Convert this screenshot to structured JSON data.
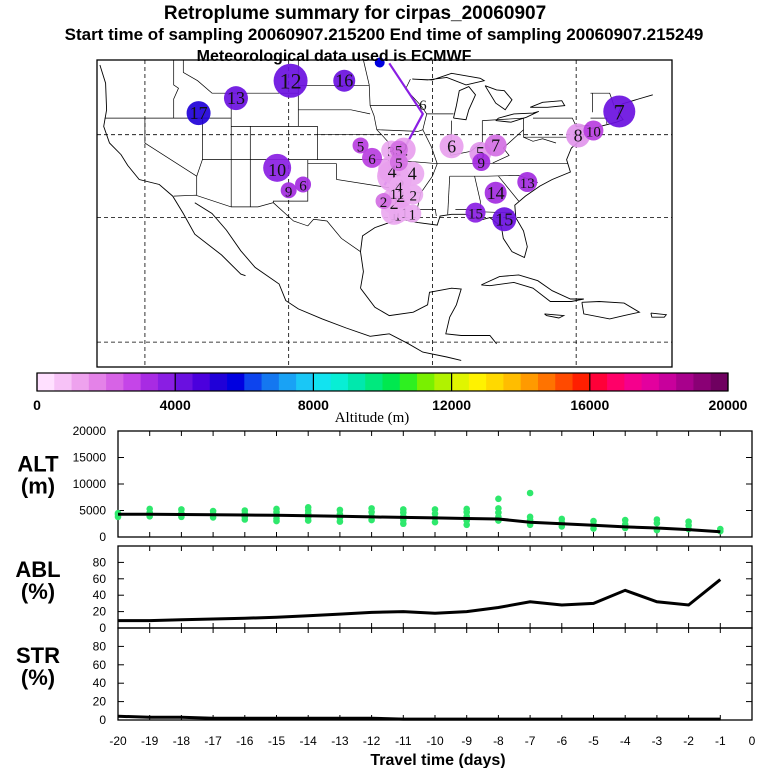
{
  "titles": {
    "line1": "Retroplume summary for cirpas_20060907",
    "line2": "Start time of sampling 20060907.215200     End time of sampling 20060907.215249",
    "line3": "Meteorological data used is ECMWF"
  },
  "colorbar": {
    "label": "Altitude (m)",
    "ticks": [
      "0",
      "4000",
      "8000",
      "12000",
      "16000",
      "20000"
    ],
    "tick_values": [
      0,
      4000,
      8000,
      12000,
      16000,
      20000
    ],
    "colors": [
      "#ffe0ff",
      "#f7c2f7",
      "#eea2ee",
      "#e482e8",
      "#d763e6",
      "#c545e8",
      "#a82be3",
      "#8a1ee3",
      "#6a10e0",
      "#4b00dd",
      "#2000d8",
      "#0000e0",
      "#0d44ee",
      "#1477f0",
      "#19a2f5",
      "#1ac7f6",
      "#12e3f0",
      "#08eed5",
      "#00e8ad",
      "#00e97e",
      "#00e84f",
      "#2ef020",
      "#79f000",
      "#b1f200",
      "#e0f500",
      "#fff200",
      "#ffd900",
      "#ffbd00",
      "#ff9a00",
      "#ff7300",
      "#ff4a00",
      "#ff1f00",
      "#ff0038",
      "#ff0068",
      "#f5008d",
      "#e3009e",
      "#c8009c",
      "#a8008c",
      "#8a0075",
      "#6f0060"
    ]
  },
  "map_markers": [
    {
      "label": "1",
      "lon": -94.0,
      "lat": 30.7,
      "color": "#eaa9f0",
      "r": 13
    },
    {
      "label": "1",
      "lon": -93.6,
      "lat": 30.4,
      "color": "#eaa9f0",
      "r": 9
    },
    {
      "label": "1",
      "lon": -92.9,
      "lat": 30.7,
      "color": "#eaa9f0",
      "r": 9
    },
    {
      "label": "1",
      "lon": -92.1,
      "lat": 30.5,
      "color": "#eaa9f0",
      "r": 9
    },
    {
      "label": "2",
      "lon": -94.0,
      "lat": 32.0,
      "color": "#eaa9f0",
      "r": 13
    },
    {
      "label": "2",
      "lon": -93.3,
      "lat": 32.6,
      "color": "#e8a0ee",
      "r": 12
    },
    {
      "label": "2",
      "lon": -92.0,
      "lat": 32.8,
      "color": "#eaa9f0",
      "r": 10
    },
    {
      "label": "2",
      "lon": -93.0,
      "lat": 38.2,
      "color": "#e8a0ee",
      "r": 12
    },
    {
      "label": "2",
      "lon": -95.1,
      "lat": 32.0,
      "color": "#d26fe3",
      "r": 8
    },
    {
      "label": "3",
      "lon": -94.1,
      "lat": 35.0,
      "color": "#e8a0ee",
      "r": 16
    },
    {
      "label": "3",
      "lon": -93.4,
      "lat": 34.5,
      "color": "#eaa9f0",
      "r": 12
    },
    {
      "label": "3",
      "lon": -94.3,
      "lat": 38.1,
      "color": "#eaa9f0",
      "r": 10
    },
    {
      "label": "4",
      "lon": -94.2,
      "lat": 35.8,
      "color": "#e8a0ee",
      "r": 14
    },
    {
      "label": "4",
      "lon": -92.1,
      "lat": 35.3,
      "color": "#eaa9f0",
      "r": 12
    },
    {
      "label": "4",
      "lon": -93.5,
      "lat": 33.8,
      "color": "#eaa9f0",
      "r": 10
    },
    {
      "label": "5",
      "lon": -93.5,
      "lat": 38.2,
      "color": "#d26fe3",
      "r": 9
    },
    {
      "label": "5",
      "lon": -93.5,
      "lat": 36.7,
      "color": "#d26fe3",
      "r": 9
    },
    {
      "label": "5",
      "lon": -97.5,
      "lat": 38.7,
      "color": "#b93ee0",
      "r": 8
    },
    {
      "label": "5",
      "lon": -85.0,
      "lat": 37.8,
      "color": "#e195ec",
      "r": 11
    },
    {
      "label": "6",
      "lon": -88.0,
      "lat": 38.6,
      "color": "#e8a0ee",
      "r": 12
    },
    {
      "label": "6",
      "lon": -96.3,
      "lat": 37.2,
      "color": "#b93ee0",
      "r": 10
    },
    {
      "label": "6",
      "lon": -103.5,
      "lat": 34.0,
      "color": "#a32be0",
      "r": 8
    },
    {
      "label": "6",
      "lon": -91.0,
      "lat": 43.7,
      "color": "#ffffff",
      "r": 0
    },
    {
      "label": "7",
      "lon": -83.4,
      "lat": 38.7,
      "color": "#d26fe3",
      "r": 11
    },
    {
      "label": "8",
      "lon": -74.8,
      "lat": 39.9,
      "color": "#e195ec",
      "r": 12
    },
    {
      "label": "9",
      "lon": -84.9,
      "lat": 36.7,
      "color": "#a32be0",
      "r": 9
    },
    {
      "label": "9",
      "lon": -105.0,
      "lat": 33.3,
      "color": "#a32be0",
      "r": 8
    },
    {
      "label": "10",
      "lon": -106.2,
      "lat": 36.0,
      "color": "#8a1ee3",
      "r": 14
    },
    {
      "label": "10",
      "lon": -73.2,
      "lat": 40.5,
      "color": "#b93ee0",
      "r": 10
    },
    {
      "label": "11",
      "lon": -93.7,
      "lat": 33.0,
      "color": "#ffffff",
      "r": 0
    },
    {
      "label": "12",
      "lon": -104.8,
      "lat": 46.5,
      "color": "#6a10e0",
      "r": 17
    },
    {
      "label": "13",
      "lon": -110.5,
      "lat": 44.4,
      "color": "#6a10e0",
      "r": 12
    },
    {
      "label": "13",
      "lon": -80.1,
      "lat": 34.3,
      "color": "#a32be0",
      "r": 10
    },
    {
      "label": "14",
      "lon": -83.4,
      "lat": 33.0,
      "color": "#a32be0",
      "r": 11
    },
    {
      "label": "15",
      "lon": -85.5,
      "lat": 30.6,
      "color": "#8a1ee3",
      "r": 10
    },
    {
      "label": "15",
      "lon": -82.5,
      "lat": 29.8,
      "color": "#6a10e0",
      "r": 12
    },
    {
      "label": "16",
      "lon": -99.2,
      "lat": 46.5,
      "color": "#6a10e0",
      "r": 11
    },
    {
      "label": "17",
      "lon": -114.4,
      "lat": 42.6,
      "color": "#2000d8",
      "r": 12
    },
    {
      "label": "7",
      "lon": -70.5,
      "lat": 42.8,
      "color": "#6a10e0",
      "r": 16
    }
  ],
  "chart_data": [
    {
      "type": "scatter+line",
      "title": "ALT (m)",
      "panel_label": "ALT\n(m)",
      "label_lines": [
        "ALT",
        "(m)"
      ],
      "xlabel": "Travel time (days)",
      "ylabel": "",
      "xlim": [
        -20,
        0
      ],
      "ylim": [
        0,
        20000
      ],
      "yticks": [
        0,
        5000,
        10000,
        15000,
        20000
      ],
      "median_line": {
        "x": [
          -20,
          -19,
          -18,
          -17,
          -16,
          -15,
          -14,
          -13,
          -12,
          -11,
          -10,
          -9,
          -8,
          -7,
          -6,
          -5,
          -4,
          -3,
          -2,
          -1
        ],
        "y": [
          4300,
          4300,
          4250,
          4200,
          4150,
          4100,
          4000,
          3900,
          3800,
          3700,
          3600,
          3500,
          3400,
          2800,
          2500,
          2200,
          1900,
          1700,
          1400,
          1000
        ]
      },
      "scatter_points": {
        "color": "#2ee86c",
        "x": [
          -20,
          -20,
          -20,
          -19,
          -19,
          -19,
          -19,
          -18,
          -18,
          -18,
          -18,
          -17,
          -17,
          -17,
          -16,
          -16,
          -16,
          -16,
          -15,
          -15,
          -15,
          -15,
          -15,
          -14,
          -14,
          -14,
          -14,
          -14,
          -13,
          -13,
          -13,
          -13,
          -12,
          -12,
          -12,
          -12,
          -11,
          -11,
          -11,
          -11,
          -11,
          -10,
          -10,
          -10,
          -10,
          -9,
          -9,
          -9,
          -9,
          -9,
          -8,
          -8,
          -8,
          -8,
          -7,
          -7,
          -7,
          -7,
          -6,
          -6,
          -6,
          -5,
          -5,
          -5,
          -4,
          -4,
          -4,
          -3,
          -3,
          -3,
          -2,
          -2,
          -2,
          -1,
          -1,
          -8,
          -7
        ],
        "y": [
          4500,
          3800,
          4200,
          5300,
          4600,
          3900,
          4300,
          5200,
          4500,
          3800,
          4200,
          4900,
          4300,
          3700,
          5000,
          4400,
          3800,
          3300,
          5300,
          4700,
          4100,
          3500,
          3000,
          5600,
          5000,
          4400,
          3700,
          3100,
          5100,
          4300,
          3600,
          2900,
          5400,
          4700,
          3900,
          3200,
          5200,
          4600,
          3900,
          3200,
          2500,
          5200,
          4400,
          3600,
          2800,
          5300,
          4700,
          3900,
          3100,
          2300,
          5400,
          4600,
          3800,
          3100,
          3800,
          3200,
          2600,
          2300,
          3400,
          2700,
          2000,
          3000,
          2300,
          1600,
          3200,
          2400,
          1700,
          3300,
          2600,
          1300,
          2900,
          2200,
          1500,
          1500,
          1100,
          7200,
          8300
        ]
      }
    },
    {
      "type": "line",
      "title": "ABL (%)",
      "panel_label": "ABL\n(%)",
      "label_lines": [
        "ABL",
        "(%)"
      ],
      "xlim": [
        -20,
        0
      ],
      "ylim": [
        0,
        100
      ],
      "yticks": [
        0,
        20,
        40,
        60,
        80
      ],
      "x": [
        -20,
        -19,
        -18,
        -17,
        -16,
        -15,
        -14,
        -13,
        -12,
        -11,
        -10,
        -9,
        -8,
        -7,
        -6,
        -5,
        -4,
        -3,
        -2,
        -1
      ],
      "y": [
        9,
        9,
        10,
        11,
        12,
        13,
        15,
        17,
        19,
        20,
        18,
        20,
        25,
        32,
        28,
        30,
        46,
        32,
        28,
        59
      ]
    },
    {
      "type": "line",
      "title": "STR (%)",
      "panel_label": "STR\n(%)",
      "label_lines": [
        "STR",
        "(%)"
      ],
      "xlim": [
        -20,
        0
      ],
      "ylim": [
        0,
        100
      ],
      "yticks": [
        0,
        20,
        40,
        60,
        80
      ],
      "xticks": [
        "-20",
        "-19",
        "-18",
        "-17",
        "-16",
        "-15",
        "-14",
        "-13",
        "-12",
        "-11",
        "-10",
        "-9",
        "-8",
        "-7",
        "-6",
        "-5",
        "-4",
        "-3",
        "-2",
        "-1",
        "0"
      ],
      "x": [
        -20,
        -19,
        -18,
        -17,
        -16,
        -15,
        -14,
        -13,
        -12,
        -11,
        -10,
        -9,
        -8,
        -7,
        -6,
        -5,
        -4,
        -3,
        -2,
        -1
      ],
      "y": [
        4,
        3,
        3,
        2,
        2,
        2,
        2,
        2,
        2,
        1,
        1,
        1,
        1,
        1,
        1,
        1,
        1,
        1,
        1,
        1
      ]
    }
  ]
}
